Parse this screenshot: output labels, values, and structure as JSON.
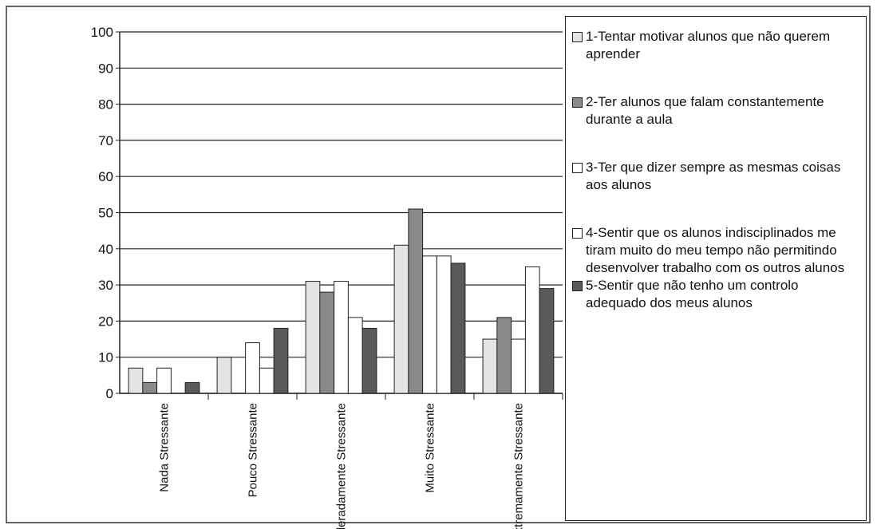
{
  "chart_data": {
    "type": "bar",
    "categories": [
      "Nada Stressante",
      "Pouco Stressante",
      "Moderadamente Stressante",
      "Muito Stressante",
      "Extremamente Stressante"
    ],
    "series": [
      {
        "name": "1-Tentar motivar alunos que não querem aprender",
        "color": "#e4e4e4",
        "values": [
          7,
          10,
          31,
          41,
          15
        ]
      },
      {
        "name": "2-Ter alunos que falam constantemente durante a aula",
        "color": "#8a8a8a",
        "values": [
          3,
          0,
          28,
          51,
          21
        ]
      },
      {
        "name": "3-Ter que dizer sempre as mesmas coisas aos alunos",
        "color": "#ffffff",
        "values": [
          7,
          14,
          31,
          38,
          15
        ]
      },
      {
        "name": "4-Sentir que os alunos indisciplinados me tiram muito do meu tempo não permitindo desenvolver trabalho com os outros alunos",
        "color": "#ffffff",
        "values": [
          0,
          7,
          21,
          38,
          35
        ]
      },
      {
        "name": "5-Sentir que não tenho um controlo adequado dos meus alunos",
        "color": "#5a5a5a",
        "values": [
          3,
          18,
          18,
          36,
          29
        ]
      }
    ],
    "ylim": [
      0,
      100
    ],
    "yticks": [
      0,
      10,
      20,
      30,
      40,
      50,
      60,
      70,
      80,
      90,
      100
    ],
    "grid": true,
    "legend": "right"
  }
}
